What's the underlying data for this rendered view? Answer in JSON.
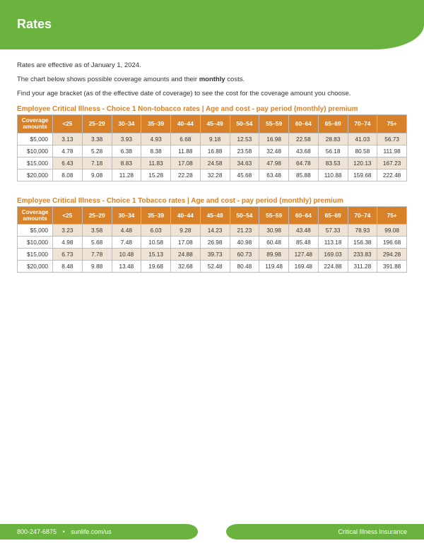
{
  "header": {
    "title": "Rates"
  },
  "intro": {
    "line1": "Rates are effective as of January 1, 2024.",
    "line2_a": "The chart below shows possible coverage amounts and their ",
    "line2_b": "monthly",
    "line2_c": " costs.",
    "line3": "Find your age bracket (as of the effective date of coverage) to see the cost for the coverage amount you choose."
  },
  "tables": [
    {
      "title": "Employee Critical Illness - Choice 1 Non-tobacco rates  |  Age and cost - pay period (monthly) premium",
      "corner_a": "Coverage",
      "corner_b": "amounts",
      "age_headers": [
        "<25",
        "25–29",
        "30–34",
        "35–39",
        "40–44",
        "45–49",
        "50–54",
        "55–59",
        "60–64",
        "65–69",
        "70–74",
        "75+"
      ],
      "rows": [
        {
          "coverage": "$5,000",
          "cells": [
            "3.13",
            "3.38",
            "3.93",
            "4.93",
            "6.68",
            "9.18",
            "12.53",
            "16.98",
            "22.58",
            "28.83",
            "41.03",
            "56.73"
          ]
        },
        {
          "coverage": "$10,000",
          "cells": [
            "4.78",
            "5.28",
            "6.38",
            "8.38",
            "11.88",
            "16.88",
            "23.58",
            "32.48",
            "43.68",
            "56.18",
            "80.58",
            "111.98"
          ]
        },
        {
          "coverage": "$15,000",
          "cells": [
            "6.43",
            "7.18",
            "8.83",
            "11.83",
            "17.08",
            "24.58",
            "34.63",
            "47.98",
            "64.78",
            "83.53",
            "120.13",
            "167.23"
          ]
        },
        {
          "coverage": "$20,000",
          "cells": [
            "8.08",
            "9.08",
            "11.28",
            "15.28",
            "22.28",
            "32.28",
            "45.68",
            "63.48",
            "85.88",
            "110.88",
            "159.68",
            "222.48"
          ]
        }
      ]
    },
    {
      "title": "Employee Critical Illness - Choice 1 Tobacco rates  |  Age and cost - pay period (monthly) premium",
      "corner_a": "Coverage",
      "corner_b": "amounts",
      "age_headers": [
        "<25",
        "25–29",
        "30–34",
        "35–39",
        "40–44",
        "45–49",
        "50–54",
        "55–59",
        "60–64",
        "65–69",
        "70–74",
        "75+"
      ],
      "rows": [
        {
          "coverage": "$5,000",
          "cells": [
            "3.23",
            "3.58",
            "4.48",
            "6.03",
            "9.28",
            "14.23",
            "21.23",
            "30.98",
            "43.48",
            "57.33",
            "78.93",
            "99.08"
          ]
        },
        {
          "coverage": "$10,000",
          "cells": [
            "4.98",
            "5.68",
            "7.48",
            "10.58",
            "17.08",
            "26.98",
            "40.98",
            "60.48",
            "85.48",
            "113.18",
            "156.38",
            "196.68"
          ]
        },
        {
          "coverage": "$15,000",
          "cells": [
            "6.73",
            "7.78",
            "10.48",
            "15.13",
            "24.88",
            "39.73",
            "60.73",
            "89.98",
            "127.48",
            "169.03",
            "233.83",
            "294.28"
          ]
        },
        {
          "coverage": "$20,000",
          "cells": [
            "8.48",
            "9.88",
            "13.48",
            "19.68",
            "32.68",
            "52.48",
            "80.48",
            "119.48",
            "169.48",
            "224.88",
            "311.28",
            "391.88"
          ]
        }
      ]
    }
  ],
  "footer": {
    "phone": "800-247-6875",
    "url": "sunlife.com/us",
    "product": "Critical Illness Insurance"
  },
  "colors": {
    "brand_green": "#6ab33e",
    "brand_orange": "#d98128",
    "row_alt": "#efe4d3",
    "border": "#bdbdbd"
  }
}
